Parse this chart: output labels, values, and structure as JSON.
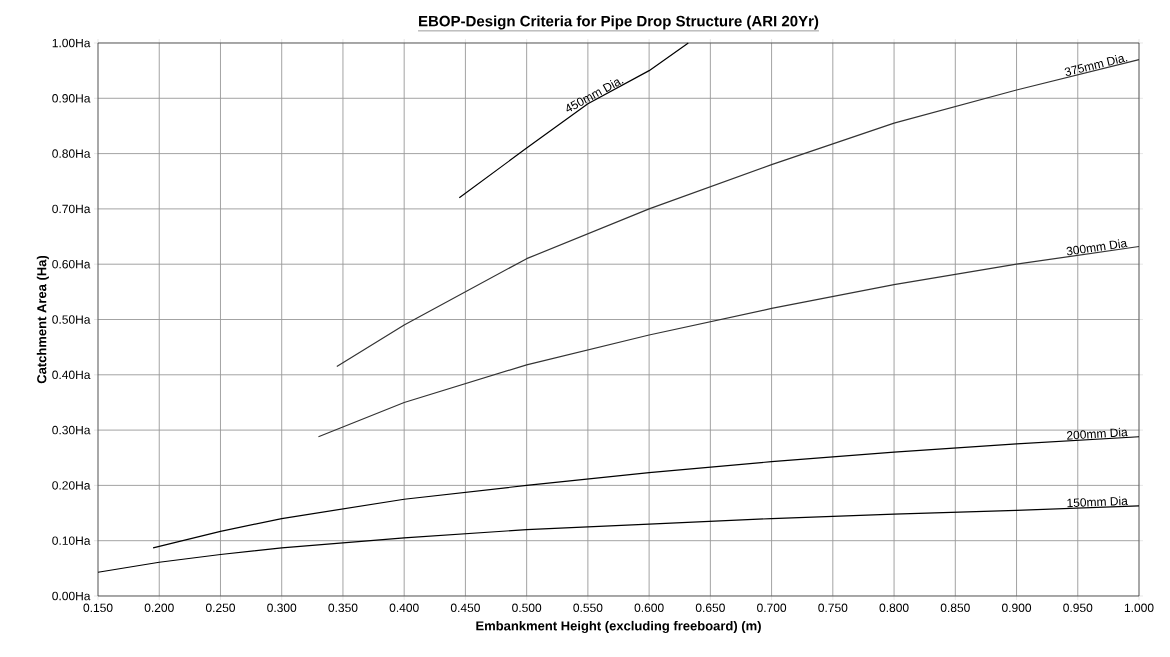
{
  "chart_data": {
    "type": "line",
    "title": "EBOP-Design Criteria for Pipe Drop Structure (ARI 20Yr)",
    "xlabel": "Embankment Height (excluding freeboard) (m)",
    "ylabel": "Catchment Area (Ha)",
    "xlim": [
      0.15,
      1.0
    ],
    "ylim": [
      0,
      1.0
    ],
    "xticks": [
      {
        "value": 0.15,
        "label": "0.150"
      },
      {
        "value": 0.2,
        "label": "0.200"
      },
      {
        "value": 0.25,
        "label": "0.250"
      },
      {
        "value": 0.3,
        "label": "0.300"
      },
      {
        "value": 0.35,
        "label": "0.350"
      },
      {
        "value": 0.4,
        "label": "0.400"
      },
      {
        "value": 0.45,
        "label": "0.450"
      },
      {
        "value": 0.5,
        "label": "0.500"
      },
      {
        "value": 0.55,
        "label": "0.550"
      },
      {
        "value": 0.6,
        "label": "0.600"
      },
      {
        "value": 0.65,
        "label": "0.650"
      },
      {
        "value": 0.7,
        "label": "0.700"
      },
      {
        "value": 0.75,
        "label": "0.750"
      },
      {
        "value": 0.8,
        "label": "0.800"
      },
      {
        "value": 0.85,
        "label": "0.850"
      },
      {
        "value": 0.9,
        "label": "0.900"
      },
      {
        "value": 0.95,
        "label": "0.950"
      },
      {
        "value": 1.0,
        "label": "1.000"
      }
    ],
    "yticks": [
      {
        "value": 0,
        "label": "0.00Ha"
      },
      {
        "value": 0.1,
        "label": "0.10Ha"
      },
      {
        "value": 0.2,
        "label": "0.20Ha"
      },
      {
        "value": 0.3,
        "label": "0.30Ha"
      },
      {
        "value": 0.4,
        "label": "0.40Ha"
      },
      {
        "value": 0.5,
        "label": "0.50Ha"
      },
      {
        "value": 0.6,
        "label": "0.60Ha"
      },
      {
        "value": 0.7,
        "label": "0.70Ha"
      },
      {
        "value": 0.8,
        "label": "0.80Ha"
      },
      {
        "value": 0.9,
        "label": "0.90Ha"
      },
      {
        "value": 1.0,
        "label": "1.00Ha"
      }
    ],
    "grid": true,
    "marker": "none",
    "line_style": "solid",
    "series": [
      {
        "name": "150mm Dia",
        "color": "#000000",
        "x": [
          0.15,
          0.2,
          0.25,
          0.3,
          0.4,
          0.5,
          0.6,
          0.7,
          0.8,
          0.9,
          1.0
        ],
        "values": [
          0.043,
          0.061,
          0.075,
          0.087,
          0.105,
          0.12,
          0.13,
          0.14,
          0.148,
          0.155,
          0.163
        ]
      },
      {
        "name": "200mm Dia",
        "color": "#000000",
        "x": [
          0.195,
          0.25,
          0.3,
          0.4,
          0.5,
          0.6,
          0.7,
          0.8,
          0.9,
          1.0
        ],
        "values": [
          0.087,
          0.117,
          0.14,
          0.175,
          0.2,
          0.223,
          0.243,
          0.26,
          0.275,
          0.288
        ]
      },
      {
        "name": "300mm Dia",
        "color": "#333333",
        "x": [
          0.33,
          0.4,
          0.5,
          0.6,
          0.7,
          0.8,
          0.9,
          1.0
        ],
        "values": [
          0.288,
          0.35,
          0.418,
          0.472,
          0.52,
          0.563,
          0.6,
          0.632
        ]
      },
      {
        "name": "375mm Dia.",
        "color": "#333333",
        "x": [
          0.345,
          0.4,
          0.5,
          0.6,
          0.7,
          0.8,
          0.9,
          1.0
        ],
        "values": [
          0.415,
          0.49,
          0.61,
          0.7,
          0.78,
          0.855,
          0.915,
          0.97
        ]
      },
      {
        "name": "450mm Dia.",
        "color": "#000000",
        "x": [
          0.445,
          0.5,
          0.55,
          0.6,
          0.632
        ],
        "values": [
          0.72,
          0.81,
          0.89,
          0.95,
          1.0
        ]
      }
    ]
  }
}
